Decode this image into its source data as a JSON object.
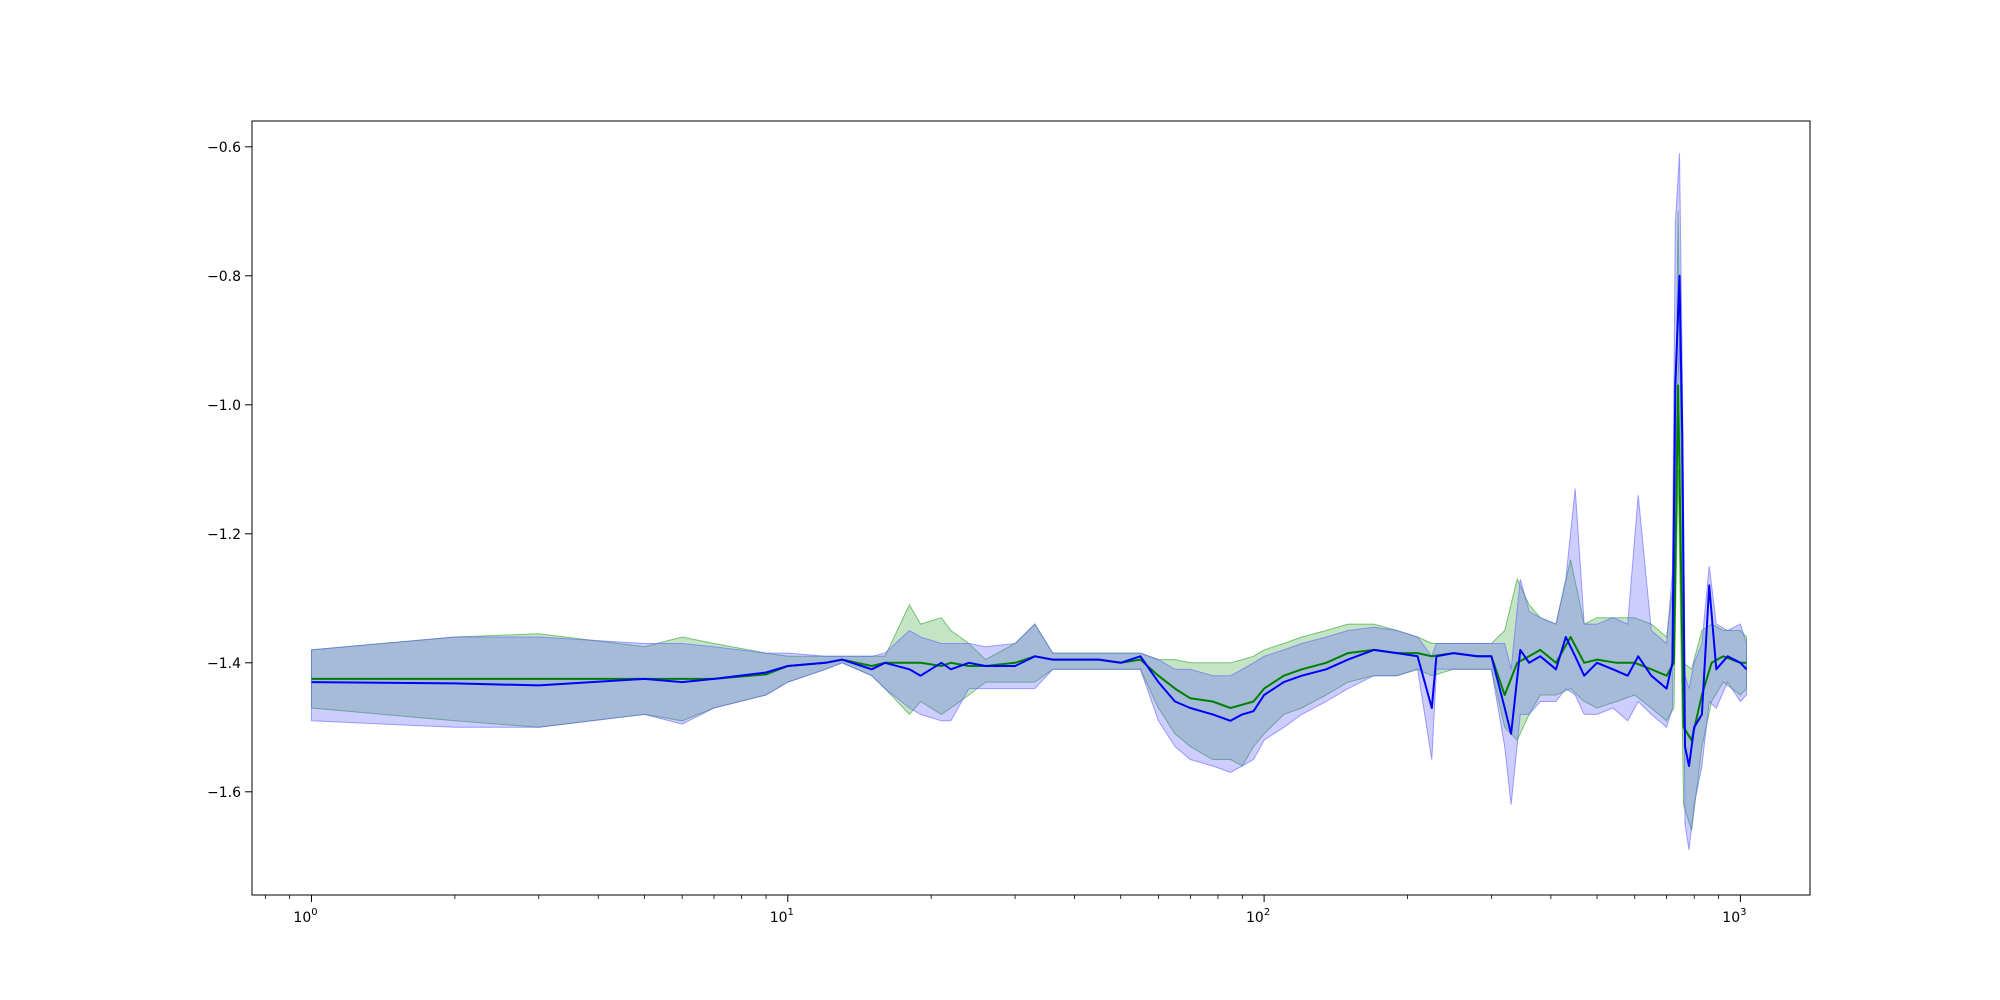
{
  "chart_data": {
    "type": "line",
    "title": "",
    "xlabel": "",
    "ylabel": "",
    "xscale": "log",
    "xlim": [
      0.75,
      1400
    ],
    "ylim": [
      -1.76,
      -0.56
    ],
    "grid": false,
    "legend": "none",
    "x_ticks": [
      {
        "base": "10",
        "exp": "0",
        "value": 1
      },
      {
        "base": "10",
        "exp": "1",
        "value": 10
      },
      {
        "base": "10",
        "exp": "2",
        "value": 100
      },
      {
        "base": "10",
        "exp": "3",
        "value": 1000
      }
    ],
    "y_ticks": [
      {
        "label": "−0.6",
        "value": -0.6
      },
      {
        "label": "−0.8",
        "value": -0.8
      },
      {
        "label": "−1.0",
        "value": -1.0
      },
      {
        "label": "−1.2",
        "value": -1.2
      },
      {
        "label": "−1.4",
        "value": -1.4
      },
      {
        "label": "−1.6",
        "value": -1.6
      }
    ],
    "series": [
      {
        "color": "#008000",
        "band_color": "#2ca02c",
        "points": [
          [
            1,
            -1.425,
            -1.38,
            -1.47
          ],
          [
            2,
            -1.425,
            -1.36,
            -1.49
          ],
          [
            3,
            -1.425,
            -1.355,
            -1.5
          ],
          [
            5,
            -1.425,
            -1.375,
            -1.48
          ],
          [
            6,
            -1.425,
            -1.36,
            -1.49
          ],
          [
            7,
            -1.425,
            -1.37,
            -1.47
          ],
          [
            9,
            -1.418,
            -1.385,
            -1.45
          ],
          [
            10,
            -1.405,
            -1.39,
            -1.43
          ],
          [
            12,
            -1.4,
            -1.39,
            -1.41
          ],
          [
            13,
            -1.395,
            -1.39,
            -1.4
          ],
          [
            15,
            -1.405,
            -1.39,
            -1.42
          ],
          [
            16,
            -1.4,
            -1.39,
            -1.44
          ],
          [
            18,
            -1.4,
            -1.31,
            -1.48
          ],
          [
            19,
            -1.4,
            -1.34,
            -1.46
          ],
          [
            21,
            -1.405,
            -1.33,
            -1.48
          ],
          [
            22,
            -1.4,
            -1.35,
            -1.47
          ],
          [
            24,
            -1.405,
            -1.37,
            -1.45
          ],
          [
            26,
            -1.405,
            -1.395,
            -1.43
          ],
          [
            30,
            -1.4,
            -1.37,
            -1.43
          ],
          [
            33,
            -1.39,
            -1.34,
            -1.43
          ],
          [
            36,
            -1.395,
            -1.385,
            -1.41
          ],
          [
            40,
            -1.395,
            -1.385,
            -1.41
          ],
          [
            45,
            -1.395,
            -1.385,
            -1.41
          ],
          [
            50,
            -1.4,
            -1.385,
            -1.41
          ],
          [
            55,
            -1.395,
            -1.385,
            -1.41
          ],
          [
            60,
            -1.42,
            -1.395,
            -1.47
          ],
          [
            65,
            -1.44,
            -1.395,
            -1.51
          ],
          [
            70,
            -1.455,
            -1.4,
            -1.53
          ],
          [
            78,
            -1.46,
            -1.4,
            -1.55
          ],
          [
            85,
            -1.47,
            -1.4,
            -1.55
          ],
          [
            90,
            -1.465,
            -1.395,
            -1.56
          ],
          [
            95,
            -1.46,
            -1.39,
            -1.53
          ],
          [
            100,
            -1.44,
            -1.38,
            -1.51
          ],
          [
            110,
            -1.42,
            -1.37,
            -1.48
          ],
          [
            120,
            -1.41,
            -1.36,
            -1.47
          ],
          [
            135,
            -1.4,
            -1.35,
            -1.45
          ],
          [
            150,
            -1.385,
            -1.34,
            -1.43
          ],
          [
            170,
            -1.38,
            -1.34,
            -1.42
          ],
          [
            190,
            -1.385,
            -1.35,
            -1.42
          ],
          [
            210,
            -1.385,
            -1.36,
            -1.41
          ],
          [
            225,
            -1.39,
            -1.37,
            -1.42
          ],
          [
            250,
            -1.385,
            -1.37,
            -1.41
          ],
          [
            280,
            -1.39,
            -1.37,
            -1.41
          ],
          [
            300,
            -1.39,
            -1.37,
            -1.41
          ],
          [
            320,
            -1.45,
            -1.35,
            -1.5
          ],
          [
            340,
            -1.4,
            -1.27,
            -1.52
          ],
          [
            360,
            -1.39,
            -1.31,
            -1.48
          ],
          [
            380,
            -1.38,
            -1.33,
            -1.45
          ],
          [
            410,
            -1.4,
            -1.34,
            -1.45
          ],
          [
            440,
            -1.36,
            -1.24,
            -1.44
          ],
          [
            470,
            -1.4,
            -1.34,
            -1.46
          ],
          [
            500,
            -1.395,
            -1.33,
            -1.47
          ],
          [
            550,
            -1.4,
            -1.33,
            -1.46
          ],
          [
            600,
            -1.4,
            -1.33,
            -1.45
          ],
          [
            650,
            -1.41,
            -1.34,
            -1.47
          ],
          [
            700,
            -1.42,
            -1.36,
            -1.49
          ],
          [
            725,
            -1.4,
            -1.27,
            -1.47
          ],
          [
            740,
            -0.97,
            -0.7,
            -1.1
          ],
          [
            760,
            -1.5,
            -1.4,
            -1.62
          ],
          [
            790,
            -1.52,
            -1.41,
            -1.66
          ],
          [
            830,
            -1.45,
            -1.35,
            -1.53
          ],
          [
            870,
            -1.4,
            -1.34,
            -1.46
          ],
          [
            920,
            -1.39,
            -1.35,
            -1.43
          ],
          [
            1000,
            -1.4,
            -1.35,
            -1.45
          ],
          [
            1030,
            -1.4,
            -1.36,
            -1.44
          ]
        ]
      },
      {
        "color": "#0000ff",
        "band_color": "#6464ff",
        "points": [
          [
            1,
            -1.43,
            -1.38,
            -1.49
          ],
          [
            2,
            -1.432,
            -1.36,
            -1.5
          ],
          [
            3,
            -1.435,
            -1.36,
            -1.5
          ],
          [
            5,
            -1.425,
            -1.37,
            -1.48
          ],
          [
            6,
            -1.43,
            -1.37,
            -1.495
          ],
          [
            7,
            -1.425,
            -1.375,
            -1.47
          ],
          [
            9,
            -1.415,
            -1.385,
            -1.45
          ],
          [
            10,
            -1.405,
            -1.385,
            -1.43
          ],
          [
            12,
            -1.4,
            -1.39,
            -1.41
          ],
          [
            13,
            -1.395,
            -1.39,
            -1.4
          ],
          [
            15,
            -1.41,
            -1.39,
            -1.42
          ],
          [
            16,
            -1.4,
            -1.385,
            -1.44
          ],
          [
            18,
            -1.41,
            -1.35,
            -1.47
          ],
          [
            19,
            -1.42,
            -1.36,
            -1.48
          ],
          [
            21,
            -1.4,
            -1.37,
            -1.49
          ],
          [
            22,
            -1.41,
            -1.37,
            -1.49
          ],
          [
            24,
            -1.4,
            -1.37,
            -1.44
          ],
          [
            26,
            -1.405,
            -1.375,
            -1.44
          ],
          [
            30,
            -1.405,
            -1.37,
            -1.44
          ],
          [
            33,
            -1.39,
            -1.34,
            -1.44
          ],
          [
            36,
            -1.395,
            -1.385,
            -1.41
          ],
          [
            40,
            -1.395,
            -1.385,
            -1.41
          ],
          [
            45,
            -1.395,
            -1.385,
            -1.41
          ],
          [
            50,
            -1.4,
            -1.385,
            -1.41
          ],
          [
            55,
            -1.39,
            -1.385,
            -1.41
          ],
          [
            60,
            -1.43,
            -1.395,
            -1.49
          ],
          [
            65,
            -1.46,
            -1.41,
            -1.53
          ],
          [
            70,
            -1.47,
            -1.41,
            -1.55
          ],
          [
            78,
            -1.48,
            -1.42,
            -1.56
          ],
          [
            85,
            -1.49,
            -1.42,
            -1.57
          ],
          [
            90,
            -1.48,
            -1.41,
            -1.56
          ],
          [
            95,
            -1.475,
            -1.4,
            -1.55
          ],
          [
            100,
            -1.45,
            -1.39,
            -1.52
          ],
          [
            110,
            -1.43,
            -1.38,
            -1.5
          ],
          [
            120,
            -1.42,
            -1.37,
            -1.48
          ],
          [
            135,
            -1.41,
            -1.36,
            -1.46
          ],
          [
            150,
            -1.395,
            -1.35,
            -1.44
          ],
          [
            170,
            -1.38,
            -1.345,
            -1.42
          ],
          [
            190,
            -1.385,
            -1.35,
            -1.42
          ],
          [
            210,
            -1.39,
            -1.36,
            -1.41
          ],
          [
            225,
            -1.47,
            -1.39,
            -1.55
          ],
          [
            230,
            -1.39,
            -1.37,
            -1.41
          ],
          [
            250,
            -1.385,
            -1.37,
            -1.41
          ],
          [
            280,
            -1.39,
            -1.37,
            -1.41
          ],
          [
            300,
            -1.39,
            -1.37,
            -1.41
          ],
          [
            320,
            -1.47,
            -1.37,
            -1.53
          ],
          [
            330,
            -1.51,
            -1.41,
            -1.62
          ],
          [
            345,
            -1.38,
            -1.27,
            -1.48
          ],
          [
            360,
            -1.4,
            -1.32,
            -1.48
          ],
          [
            380,
            -1.39,
            -1.33,
            -1.46
          ],
          [
            410,
            -1.41,
            -1.34,
            -1.46
          ],
          [
            430,
            -1.36,
            -1.27,
            -1.44
          ],
          [
            450,
            -1.39,
            -1.13,
            -1.45
          ],
          [
            470,
            -1.42,
            -1.34,
            -1.48
          ],
          [
            500,
            -1.4,
            -1.34,
            -1.48
          ],
          [
            540,
            -1.41,
            -1.33,
            -1.47
          ],
          [
            580,
            -1.42,
            -1.34,
            -1.49
          ],
          [
            610,
            -1.39,
            -1.14,
            -1.46
          ],
          [
            650,
            -1.42,
            -1.35,
            -1.48
          ],
          [
            700,
            -1.44,
            -1.37,
            -1.5
          ],
          [
            720,
            -1.4,
            -1.26,
            -1.47
          ],
          [
            730,
            -0.97,
            -0.72,
            -1.1
          ],
          [
            745,
            -0.8,
            -0.61,
            -0.9
          ],
          [
            755,
            -1.05,
            -0.95,
            -1.15
          ],
          [
            765,
            -1.53,
            -1.42,
            -1.65
          ],
          [
            780,
            -1.56,
            -1.44,
            -1.69
          ],
          [
            800,
            -1.5,
            -1.4,
            -1.62
          ],
          [
            830,
            -1.48,
            -1.37,
            -1.56
          ],
          [
            860,
            -1.28,
            -1.25,
            -1.46
          ],
          [
            890,
            -1.41,
            -1.34,
            -1.47
          ],
          [
            940,
            -1.39,
            -1.35,
            -1.43
          ],
          [
            1000,
            -1.4,
            -1.34,
            -1.46
          ],
          [
            1030,
            -1.41,
            -1.37,
            -1.45
          ]
        ]
      }
    ]
  }
}
